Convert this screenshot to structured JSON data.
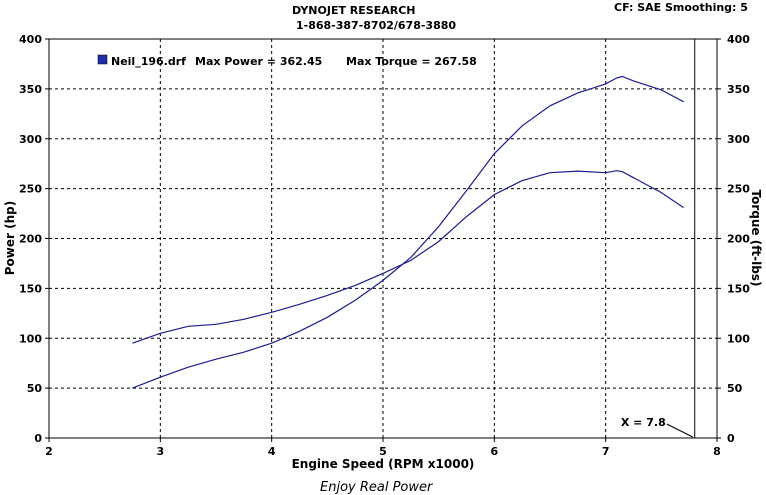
{
  "header": {
    "company": "DYNOJET RESEARCH",
    "phone": "1-868-387-8702/678-3880",
    "cf_info": "CF: SAE  Smoothing: 5"
  },
  "footer": {
    "tagline": "Enjoy Real Power"
  },
  "chart_data": {
    "type": "line",
    "xlabel": "Engine Speed (RPM x1000)",
    "ylabel_left": "Power (hp)",
    "ylabel_right": "Torque (ft-lbs)",
    "xlim": [
      2,
      8
    ],
    "ylim": [
      0,
      400
    ],
    "x_ticks": [
      2,
      3,
      4,
      5,
      6,
      7,
      8
    ],
    "y_ticks": [
      0,
      50,
      100,
      150,
      200,
      250,
      300,
      350,
      400
    ],
    "grid": true,
    "cursor": {
      "x": 7.8,
      "label": "X = 7.8"
    },
    "legend": {
      "file": "Neil_196.drf",
      "max_power_label": "Max Power = 362.45",
      "max_torque_label": "Max Torque = 267.58",
      "swatch_color": "#1c2fa6"
    },
    "line_color": "#1c1c8c",
    "series": [
      {
        "name": "Power",
        "x": [
          2.75,
          3.0,
          3.25,
          3.5,
          3.75,
          4.0,
          4.25,
          4.5,
          4.75,
          5.0,
          5.25,
          5.5,
          5.75,
          6.0,
          6.25,
          6.5,
          6.75,
          7.0,
          7.1,
          7.15,
          7.25,
          7.5,
          7.7
        ],
        "y": [
          50,
          61,
          71,
          79,
          86,
          95,
          107,
          121,
          138,
          158,
          181,
          212,
          248,
          285,
          313,
          333,
          346,
          355,
          361,
          362.45,
          358,
          349,
          337
        ]
      },
      {
        "name": "Torque",
        "x": [
          2.75,
          3.0,
          3.25,
          3.5,
          3.75,
          4.0,
          4.25,
          4.5,
          4.75,
          5.0,
          5.25,
          5.5,
          5.75,
          6.0,
          6.25,
          6.5,
          6.75,
          7.0,
          7.1,
          7.15,
          7.25,
          7.5,
          7.7
        ],
        "y": [
          95,
          105,
          112,
          114,
          119,
          126,
          134,
          143,
          153,
          165,
          178,
          197,
          222,
          244,
          258,
          266,
          267.58,
          266,
          268,
          267,
          261,
          246,
          231
        ]
      }
    ]
  }
}
